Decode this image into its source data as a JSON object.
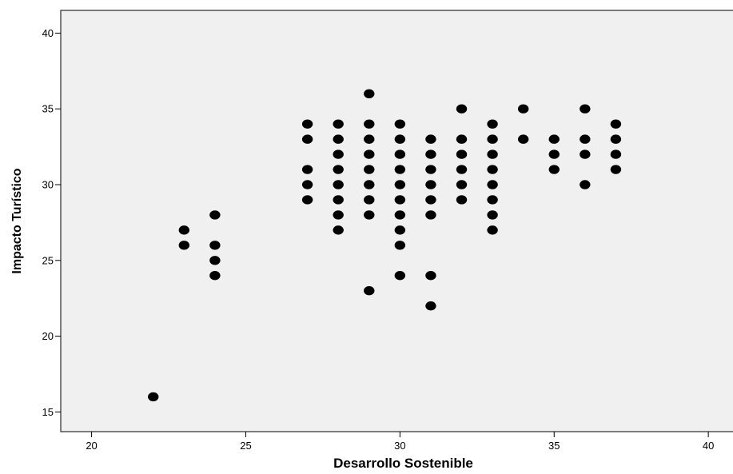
{
  "chart_data": {
    "type": "scatter",
    "title": "",
    "xlabel": "Desarrollo Sostenible",
    "ylabel": "Impacto Turístico",
    "xlim": [
      19,
      40.8
    ],
    "ylim": [
      13.7,
      41.5
    ],
    "xticks": [
      20,
      25,
      30,
      35,
      40
    ],
    "yticks": [
      15,
      20,
      25,
      30,
      35,
      40
    ],
    "grid": false,
    "colors": {
      "plot_background": "#f0f0f0",
      "marker": "#000000",
      "frame": "#3a3a3a"
    },
    "points": [
      {
        "x": 22,
        "y": 16
      },
      {
        "x": 23,
        "y": 27
      },
      {
        "x": 23,
        "y": 26
      },
      {
        "x": 24,
        "y": 28
      },
      {
        "x": 24,
        "y": 26
      },
      {
        "x": 24,
        "y": 25
      },
      {
        "x": 24,
        "y": 24
      },
      {
        "x": 27,
        "y": 34
      },
      {
        "x": 27,
        "y": 33
      },
      {
        "x": 27,
        "y": 31
      },
      {
        "x": 27,
        "y": 30
      },
      {
        "x": 27,
        "y": 29
      },
      {
        "x": 28,
        "y": 34
      },
      {
        "x": 28,
        "y": 33
      },
      {
        "x": 28,
        "y": 32
      },
      {
        "x": 28,
        "y": 31
      },
      {
        "x": 28,
        "y": 30
      },
      {
        "x": 28,
        "y": 29
      },
      {
        "x": 28,
        "y": 28
      },
      {
        "x": 28,
        "y": 27
      },
      {
        "x": 29,
        "y": 36
      },
      {
        "x": 29,
        "y": 34
      },
      {
        "x": 29,
        "y": 33
      },
      {
        "x": 29,
        "y": 32
      },
      {
        "x": 29,
        "y": 31
      },
      {
        "x": 29,
        "y": 30
      },
      {
        "x": 29,
        "y": 29
      },
      {
        "x": 29,
        "y": 28
      },
      {
        "x": 29,
        "y": 23
      },
      {
        "x": 30,
        "y": 34
      },
      {
        "x": 30,
        "y": 33
      },
      {
        "x": 30,
        "y": 32
      },
      {
        "x": 30,
        "y": 31
      },
      {
        "x": 30,
        "y": 30
      },
      {
        "x": 30,
        "y": 29
      },
      {
        "x": 30,
        "y": 28
      },
      {
        "x": 30,
        "y": 27
      },
      {
        "x": 30,
        "y": 26
      },
      {
        "x": 30,
        "y": 24
      },
      {
        "x": 31,
        "y": 33
      },
      {
        "x": 31,
        "y": 32
      },
      {
        "x": 31,
        "y": 31
      },
      {
        "x": 31,
        "y": 30
      },
      {
        "x": 31,
        "y": 29
      },
      {
        "x": 31,
        "y": 28
      },
      {
        "x": 31,
        "y": 24
      },
      {
        "x": 31,
        "y": 22
      },
      {
        "x": 32,
        "y": 35
      },
      {
        "x": 32,
        "y": 33
      },
      {
        "x": 32,
        "y": 32
      },
      {
        "x": 32,
        "y": 31
      },
      {
        "x": 32,
        "y": 30
      },
      {
        "x": 32,
        "y": 29
      },
      {
        "x": 33,
        "y": 34
      },
      {
        "x": 33,
        "y": 33
      },
      {
        "x": 33,
        "y": 32
      },
      {
        "x": 33,
        "y": 31
      },
      {
        "x": 33,
        "y": 30
      },
      {
        "x": 33,
        "y": 29
      },
      {
        "x": 33,
        "y": 28
      },
      {
        "x": 33,
        "y": 27
      },
      {
        "x": 34,
        "y": 35
      },
      {
        "x": 34,
        "y": 33
      },
      {
        "x": 35,
        "y": 33
      },
      {
        "x": 35,
        "y": 32
      },
      {
        "x": 35,
        "y": 31
      },
      {
        "x": 36,
        "y": 35
      },
      {
        "x": 36,
        "y": 33
      },
      {
        "x": 36,
        "y": 32
      },
      {
        "x": 36,
        "y": 30
      },
      {
        "x": 37,
        "y": 34
      },
      {
        "x": 37,
        "y": 33
      },
      {
        "x": 37,
        "y": 32
      },
      {
        "x": 37,
        "y": 31
      }
    ]
  }
}
